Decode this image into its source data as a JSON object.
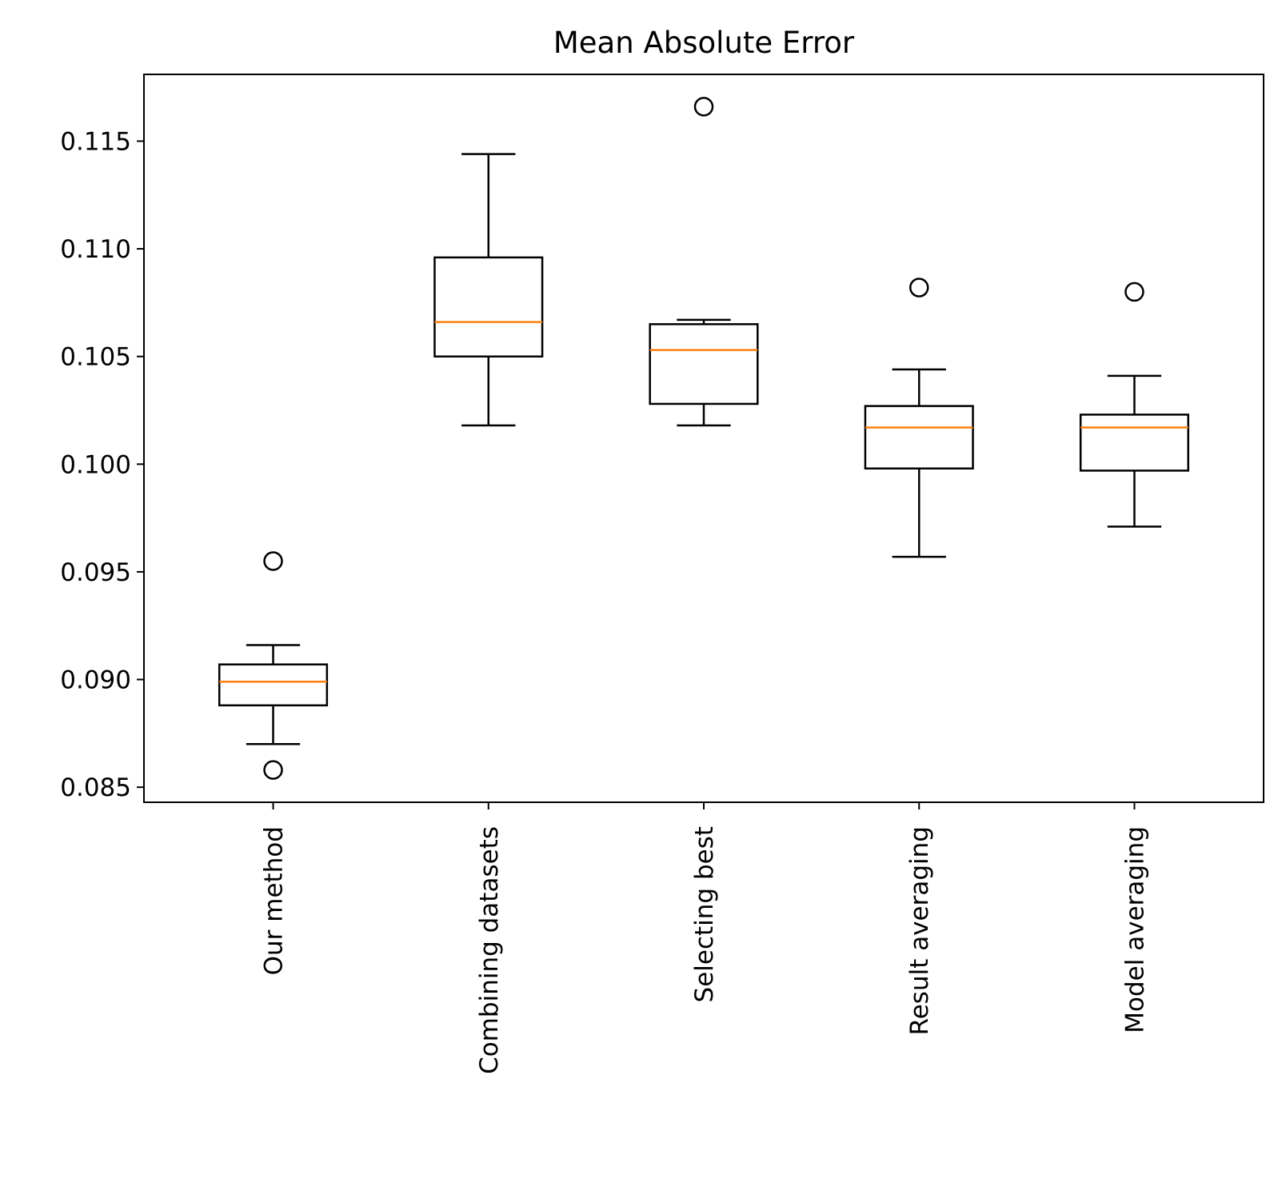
{
  "chart_data": {
    "type": "box",
    "title": "Mean Absolute Error",
    "xlabel": "",
    "ylabel": "",
    "ylim": [
      0.0843,
      0.1181
    ],
    "yticks": [
      0.085,
      0.09,
      0.095,
      0.1,
      0.105,
      0.11,
      0.115
    ],
    "ytick_labels": [
      "0.085",
      "0.090",
      "0.095",
      "0.100",
      "0.105",
      "0.110",
      "0.115"
    ],
    "categories": [
      "Our method",
      "Combining datasets",
      "Selecting best",
      "Result averaging",
      "Model averaging"
    ],
    "boxes": [
      {
        "whisker_low": 0.087,
        "q1": 0.0888,
        "median": 0.0899,
        "q3": 0.0907,
        "whisker_high": 0.0916,
        "outliers": [
          0.0955,
          0.0858
        ]
      },
      {
        "whisker_low": 0.1018,
        "q1": 0.105,
        "median": 0.1066,
        "q3": 0.1096,
        "whisker_high": 0.1144,
        "outliers": []
      },
      {
        "whisker_low": 0.1018,
        "q1": 0.1028,
        "median": 0.1053,
        "q3": 0.1065,
        "whisker_high": 0.1067,
        "outliers": [
          0.1166
        ]
      },
      {
        "whisker_low": 0.0957,
        "q1": 0.0998,
        "median": 0.1017,
        "q3": 0.1027,
        "whisker_high": 0.1044,
        "outliers": [
          0.1082
        ]
      },
      {
        "whisker_low": 0.0971,
        "q1": 0.0997,
        "median": 0.1017,
        "q3": 0.1023,
        "whisker_high": 0.1041,
        "outliers": [
          0.108
        ]
      }
    ],
    "colors": {
      "box": "#000000",
      "median": "#ff7f0e",
      "outlier": "#000000"
    },
    "grid": false,
    "legend": "none"
  }
}
